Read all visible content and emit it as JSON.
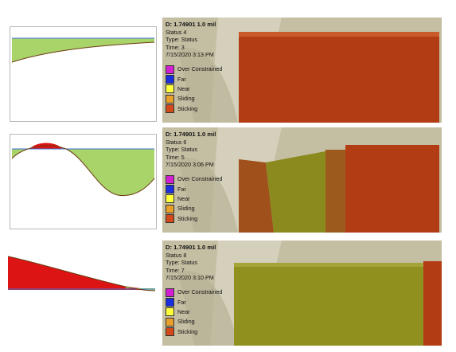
{
  "colors": {
    "over_constrained": "#d21fd2",
    "far": "#1a2ee0",
    "near": "#ffff3a",
    "sliding": "#e8a02a",
    "sticking": "#d2491a",
    "gap_green": "#a8d46a",
    "penetration_red": "#dc1414",
    "reference_line": "#3c6fd6"
  },
  "legend_keys": [
    "over_constrained",
    "far",
    "near",
    "sliding",
    "sticking"
  ],
  "rows": [
    {
      "title": "D: 1.74901 1.0 mil",
      "status": "Status 4",
      "type": "Type: Status",
      "time": "Time: 3",
      "date": "7/15/2020 3:13 PM",
      "legend": [
        "Over Constrained",
        "Far",
        "Near",
        "Sliding",
        "Sticking"
      ]
    },
    {
      "title": "D: 1.74901 1.0 mil",
      "status": "Status 6",
      "type": "Type: Status",
      "time": "Time: 5",
      "date": "7/15/2020 3:06 PM",
      "legend": [
        "Over Constrained",
        "Far",
        "Near",
        "Sliding",
        "Sticking"
      ]
    },
    {
      "title": "D: 1.74901 1.0 mil",
      "status": "Status 8",
      "type": "Type: Status",
      "time": "Time: 7",
      "date": "7/15/2020 3:10 PM",
      "legend": [
        "Over Constrained",
        "Far",
        "Near",
        "Sliding",
        "Sticking"
      ]
    }
  ]
}
